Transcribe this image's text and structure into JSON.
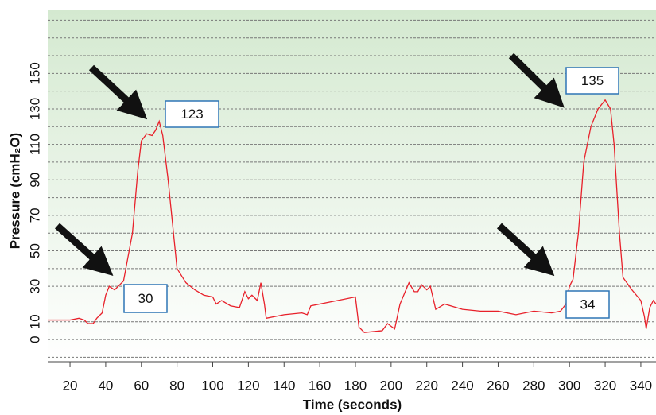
{
  "chart_data": {
    "type": "line",
    "x_label": "Time (seconds)",
    "y_label": "Pressure (cmH₂O)",
    "x": [
      7.5,
      15,
      20,
      25,
      28,
      30,
      33,
      35,
      38,
      40,
      42,
      45,
      50,
      55,
      58,
      60,
      63,
      66,
      68,
      70,
      72,
      75,
      78,
      80,
      85,
      90,
      95,
      100,
      102,
      105,
      110,
      115,
      118,
      120,
      122,
      125,
      127,
      129,
      130,
      135,
      140,
      150,
      153,
      155,
      170,
      180,
      182,
      185,
      195,
      198,
      202,
      205,
      210,
      213,
      215,
      217,
      220,
      222,
      225,
      230,
      240,
      250,
      260,
      270,
      280,
      290,
      295,
      298,
      300,
      302,
      305,
      308,
      312,
      316,
      320,
      323,
      325,
      328,
      330,
      335,
      340,
      342,
      343,
      345,
      347,
      348.5
    ],
    "series": [
      {
        "name": "Pressure",
        "color": "#e8202a",
        "values": [
          11,
          11,
          11,
          12,
          11,
          9,
          9,
          12,
          15,
          25,
          30,
          28,
          33,
          60,
          95,
          112,
          116,
          115,
          118,
          123,
          115,
          90,
          60,
          40,
          32,
          28,
          25,
          24,
          20,
          22,
          19,
          18,
          27,
          23,
          25,
          22,
          32,
          20,
          12,
          13,
          14,
          15,
          14,
          19,
          22,
          24,
          7,
          4,
          5,
          9,
          6,
          20,
          32,
          27,
          27,
          31,
          28,
          30,
          17,
          20,
          17,
          16,
          16,
          14,
          16,
          15,
          16,
          20,
          30,
          34,
          60,
          100,
          120,
          130,
          135,
          130,
          110,
          60,
          35,
          28,
          22,
          13,
          6,
          18,
          22,
          20
        ]
      }
    ],
    "xlim": [
      7.5,
      348.5
    ],
    "ylim": [
      -12.5,
      186
    ],
    "xticks": [
      20,
      40,
      60,
      80,
      100,
      120,
      140,
      160,
      180,
      200,
      220,
      240,
      260,
      280,
      300,
      320,
      340
    ],
    "yticks": [
      0,
      10,
      30,
      50,
      70,
      90,
      110,
      130,
      150
    ],
    "grid_lines": [
      -10,
      0,
      10,
      20,
      30,
      40,
      50,
      60,
      70,
      80,
      90,
      100,
      110,
      120,
      130,
      140,
      150,
      160,
      170,
      180
    ],
    "annotations": [
      {
        "text": "123"
      },
      {
        "text": "30"
      },
      {
        "text": "135"
      },
      {
        "text": "34"
      }
    ]
  }
}
